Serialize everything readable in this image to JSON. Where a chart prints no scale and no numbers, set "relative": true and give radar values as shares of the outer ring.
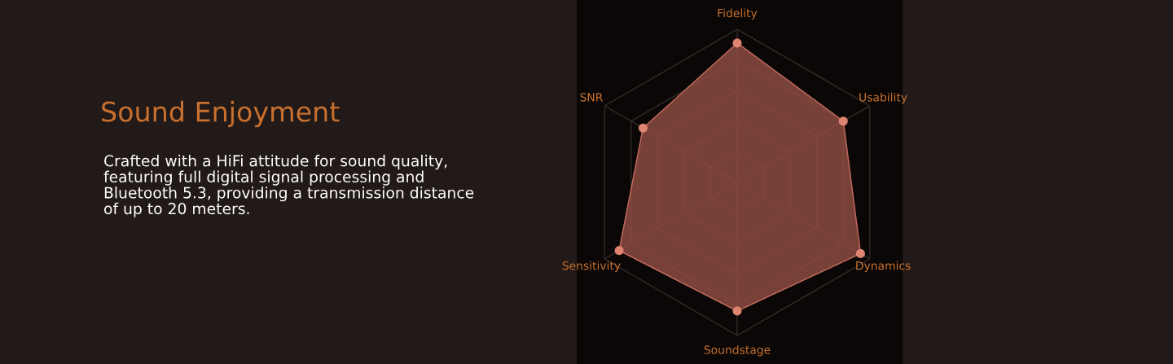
{
  "chart_data": {
    "type": "radar",
    "title": "Sound Enjoyment",
    "annotations": [
      "Crafted with a HiFi attitude for sound quality,\nfeaturing full digital signal processing and\nBluetooth 5.3, providing a transmission distance\nof up to 20 meters."
    ],
    "categories": [
      "Fidelity",
      "Usability",
      "Dynamics",
      "Soundstage",
      "Sensitivity",
      "SNR"
    ],
    "series": [
      {
        "color": "#8c4c42",
        "values": [
          0.91,
          0.8,
          0.93,
          0.84,
          0.89,
          0.71
        ]
      }
    ],
    "relative": true,
    "grid": true,
    "marker": "circle"
  }
}
